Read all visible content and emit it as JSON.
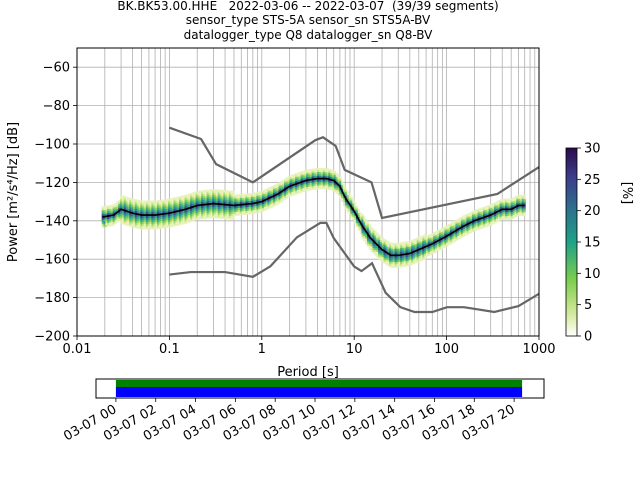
{
  "title": {
    "line1": "BK.BK53.00.HHE   2022-03-06 -- 2022-03-07  (39/39 segments)",
    "line2": "sensor_type STS-5A sensor_sn STS5A-BV",
    "line3": "datalogger_type Q8 datalogger_sn Q8-BV"
  },
  "chart_data": [
    {
      "type": "heatmap",
      "subtype": "probabilistic-power-spectral-density",
      "xlabel": "Period [s]",
      "ylabel": "Power [m²/s⁴/Hz] [dB]",
      "xscale": "log",
      "xlim": [
        0.01,
        1000
      ],
      "ylim": [
        -200,
        -50
      ],
      "xticks": [
        0.01,
        0.1,
        1,
        10,
        100,
        1000
      ],
      "xtick_labels": [
        "0.01",
        "0.1",
        "1",
        "10",
        "100",
        "1000"
      ],
      "yticks": [
        -200,
        -180,
        -160,
        -140,
        -120,
        -100,
        -80,
        -60
      ],
      "ytick_labels": [
        "−200",
        "−180",
        "−160",
        "−140",
        "−120",
        "−100",
        "−80",
        "−60"
      ],
      "grid": true,
      "colorbar": {
        "label": "[%]",
        "range": [
          0,
          30
        ],
        "ticks": [
          0,
          5,
          10,
          15,
          20,
          25,
          30
        ],
        "colormap": [
          "#ffffff",
          "#d4e99a",
          "#7ccd4e",
          "#1fa187",
          "#2e6f8e",
          "#3b3b8a",
          "#2a0a4a"
        ]
      },
      "series": [
        {
          "role": "mean-psd",
          "color": "#000000",
          "x": [
            0.019,
            0.025,
            0.03,
            0.04,
            0.05,
            0.07,
            0.1,
            0.15,
            0.2,
            0.3,
            0.5,
            0.8,
            1.0,
            1.5,
            2.0,
            3.0,
            4.0,
            5.0,
            6.0,
            7.0,
            8.0,
            10.0,
            12.0,
            15.0,
            20.0,
            25.0,
            30.0,
            40.0,
            50.0,
            70.0,
            100.0,
            150.0,
            200.0,
            300.0,
            400.0,
            500.0,
            600.0,
            700.0
          ],
          "y": [
            -138,
            -137,
            -134,
            -136,
            -137,
            -137,
            -136,
            -134,
            -132,
            -131,
            -132,
            -131,
            -130,
            -126,
            -122,
            -119,
            -118,
            -118,
            -119,
            -122,
            -128,
            -135,
            -142,
            -149,
            -155,
            -158,
            -158,
            -157,
            -155,
            -152,
            -148,
            -143,
            -140,
            -137,
            -134,
            -134,
            -132,
            -132
          ]
        }
      ],
      "noise_models": [
        {
          "role": "NHNM",
          "color": "#666666",
          "x": [
            0.1,
            0.22,
            0.32,
            0.8,
            3.8,
            4.6,
            6.3,
            7.9,
            15.4,
            20.0,
            354.8,
            1000
          ],
          "y": [
            -91.5,
            -97.4,
            -110.5,
            -120.0,
            -98.0,
            -96.5,
            -101.0,
            -113.5,
            -120.0,
            -138.5,
            -126.0,
            -112.0
          ]
        },
        {
          "role": "NLNM",
          "color": "#666666",
          "x": [
            0.1,
            0.17,
            0.4,
            0.8,
            1.24,
            2.4,
            4.3,
            5.0,
            6.0,
            10.0,
            12.0,
            15.6,
            21.9,
            31.6,
            45.0,
            70.0,
            101.0,
            154.0,
            328.0,
            600.0,
            1000
          ],
          "y": [
            -168,
            -166.7,
            -166.7,
            -169.2,
            -163.7,
            -148.6,
            -141.1,
            -141.1,
            -149.0,
            -163.8,
            -166.2,
            -162.1,
            -177.5,
            -185.0,
            -187.5,
            -187.5,
            -185.0,
            -185.0,
            -187.5,
            -184.4,
            -178.0
          ]
        }
      ]
    },
    {
      "type": "timeline",
      "subtype": "data-coverage",
      "xtick_labels": [
        "03-07 00",
        "03-07 02",
        "03-07 04",
        "03-07 06",
        "03-07 08",
        "03-07 10",
        "03-07 12",
        "03-07 14",
        "03-07 16",
        "03-07 18",
        "03-07 20"
      ],
      "xticks_hours": [
        0,
        2,
        4,
        6,
        8,
        10,
        12,
        14,
        16,
        18,
        20
      ],
      "xlim_hours": [
        -1,
        21.5
      ],
      "bars": [
        {
          "role": "data-available",
          "color": "#008000",
          "start_hours": 0.0,
          "end_hours": 20.4
        },
        {
          "role": "psd-segments-used",
          "color": "#0000ff",
          "start_hours": 0.0,
          "end_hours": 20.4
        }
      ]
    }
  ]
}
